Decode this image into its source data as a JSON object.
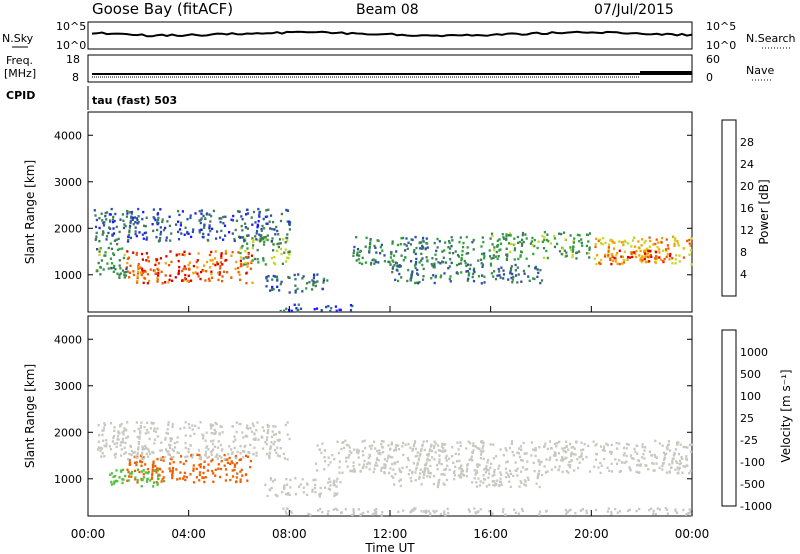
{
  "header": {
    "station": "Goose Bay (fitACF)",
    "beam": "Beam 08",
    "date": "07/Jul/2015"
  },
  "top_panels": {
    "nsky_label": "N.Sky",
    "nsearch_label": "N.Search",
    "nsky_ticks": [
      "10^5",
      "10^0"
    ],
    "nsearch_ticks": [
      "10^5",
      "10^0"
    ],
    "freq_label_line1": "Freq.",
    "freq_label_line2": "[MHz]",
    "freq_ticks": [
      "18",
      "8"
    ],
    "nave_label": "Nave",
    "nave_ticks": [
      "60",
      "0"
    ],
    "cpid_label": "CPID",
    "cpid_text": "tau (fast) 503"
  },
  "x_axis": {
    "label": "Time UT",
    "ticks": [
      "00:00",
      "04:00",
      "08:00",
      "12:00",
      "16:00",
      "20:00",
      "00:00"
    ]
  },
  "power_colorbar": {
    "label": "Power [dB]",
    "ticks": [
      "4",
      "8",
      "12",
      "16",
      "20",
      "24",
      "28"
    ],
    "colors": [
      "#1a1aff",
      "#2b4fa8",
      "#3e7f55",
      "#2fa03c",
      "#c8d620",
      "#f5a000",
      "#f05a00",
      "#e00000"
    ]
  },
  "velocity_colorbar": {
    "label": "Velocity [m s⁻¹]",
    "ticks": [
      "1000",
      "500",
      "100",
      "25",
      "-25",
      "-100",
      "-500",
      "-1000"
    ],
    "colors": [
      "#1030c0",
      "#3a6a9a",
      "#3e8a55",
      "#55c040",
      "#c8c8c0",
      "#f5a000",
      "#f06000",
      "#e81818"
    ]
  },
  "chart_data": [
    {
      "type": "heatmap",
      "title": "Power",
      "xlabel": "Time UT",
      "ylabel": "Slant Range [km]",
      "x_range_hours": [
        0,
        24
      ],
      "ylim": [
        200,
        4500
      ],
      "yticks": [
        1000,
        2000,
        3000,
        4000
      ],
      "colorbar_label": "Power [dB]",
      "colorbar_range": [
        0,
        32
      ],
      "regions": [
        {
          "t": [
            1.5,
            6.5
          ],
          "r": [
            800,
            1500
          ],
          "value": 27
        },
        {
          "t": [
            0.3,
            1.5
          ],
          "r": [
            900,
            1700
          ],
          "value": 12
        },
        {
          "t": [
            6.0,
            8.0
          ],
          "r": [
            1200,
            1800
          ],
          "value": 14
        },
        {
          "t": [
            7.0,
            9.5
          ],
          "r": [
            600,
            1000
          ],
          "value": 8
        },
        {
          "t": [
            7.5,
            10.5
          ],
          "r": [
            200,
            350
          ],
          "value": 6
        },
        {
          "t": [
            10.5,
            16.0
          ],
          "r": [
            1200,
            1800
          ],
          "value": 10
        },
        {
          "t": [
            12.0,
            18.0
          ],
          "r": [
            800,
            1200
          ],
          "value": 9
        },
        {
          "t": [
            16.0,
            20.0
          ],
          "r": [
            1300,
            1900
          ],
          "value": 13
        },
        {
          "t": [
            20.0,
            24.0
          ],
          "r": [
            1200,
            1800
          ],
          "value": 21
        },
        {
          "t": [
            0.2,
            8.0
          ],
          "r": [
            1700,
            2400
          ],
          "value": 7
        },
        {
          "t": [
            20.5,
            23.5
          ],
          "r": [
            1200,
            1500
          ],
          "value": 27
        }
      ]
    },
    {
      "type": "heatmap",
      "title": "Velocity",
      "xlabel": "Time UT",
      "ylabel": "Slant Range [km]",
      "x_range_hours": [
        0,
        24
      ],
      "ylim": [
        200,
        4500
      ],
      "yticks": [
        1000,
        2000,
        3000,
        4000
      ],
      "colorbar_label": "Velocity [m s-1]",
      "regions": [
        {
          "t": [
            1.5,
            6.5
          ],
          "r": [
            900,
            1500
          ],
          "value": -300
        },
        {
          "t": [
            0.8,
            3.0
          ],
          "r": [
            800,
            1200
          ],
          "value": 60
        },
        {
          "t": [
            0.2,
            8.0
          ],
          "r": [
            1400,
            2200
          ],
          "value": 0
        },
        {
          "t": [
            7.0,
            10.0
          ],
          "r": [
            600,
            1000
          ],
          "value": 0
        },
        {
          "t": [
            9.0,
            24.0
          ],
          "r": [
            1100,
            1800
          ],
          "value": 0
        },
        {
          "t": [
            12.0,
            18.0
          ],
          "r": [
            800,
            1200
          ],
          "value": 0
        },
        {
          "t": [
            7.5,
            24.0
          ],
          "r": [
            200,
            350
          ],
          "value": 0
        }
      ]
    }
  ]
}
